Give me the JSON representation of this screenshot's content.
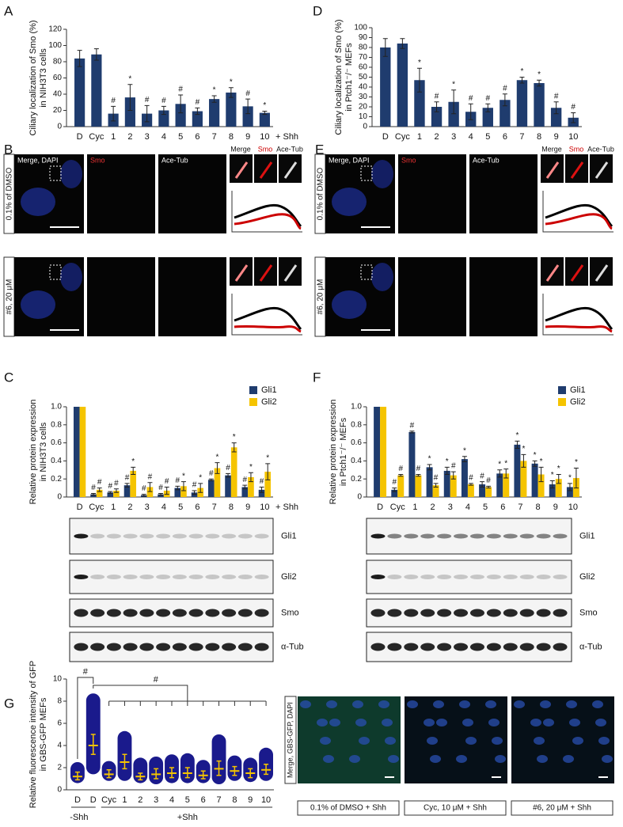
{
  "chart_data": [
    {
      "type": "bar",
      "panel": "A",
      "ylabel": [
        "Ciliary localization of Smo (%)",
        "in NIH3T3 cells"
      ],
      "color": "#1f3c6e",
      "categories": [
        "D",
        "Cyc",
        "1",
        "2",
        "3",
        "4",
        "5",
        "6",
        "7",
        "8",
        "9",
        "10"
      ],
      "category_note": "+ Shh",
      "values": [
        84,
        89,
        16,
        36,
        16,
        20,
        28,
        19,
        34,
        42,
        25,
        17
      ],
      "errors": [
        10,
        7,
        9,
        16,
        10,
        5,
        11,
        4,
        4,
        6,
        9,
        2
      ],
      "markers": [
        null,
        null,
        "#",
        "*",
        "#",
        "#",
        "#",
        "#",
        "*",
        "*",
        "#",
        "*"
      ],
      "ylim": [
        0,
        120
      ],
      "yticks": [
        0,
        20,
        40,
        60,
        80,
        100,
        120
      ]
    },
    {
      "type": "bar",
      "panel": "D",
      "ylabel": [
        "Ciliary localization of Smo (%)",
        "in Ptch1⁻/⁻ MEFs"
      ],
      "color": "#1f3c6e",
      "categories": [
        "D",
        "Cyc",
        "1",
        "2",
        "3",
        "4",
        "5",
        "6",
        "7",
        "8",
        "9",
        "10"
      ],
      "values": [
        80,
        84,
        47,
        20,
        25,
        15,
        19,
        27,
        47,
        44,
        19,
        9
      ],
      "errors": [
        9,
        5,
        12,
        5,
        12,
        8,
        4,
        6,
        3,
        3,
        6,
        5
      ],
      "markers": [
        null,
        null,
        "*",
        "#",
        "*",
        "#",
        "#",
        "#",
        "*",
        "*",
        "#",
        "#"
      ],
      "ylim": [
        0,
        100
      ],
      "yticks": [
        0,
        10,
        20,
        30,
        40,
        50,
        60,
        70,
        80,
        90,
        100
      ]
    },
    {
      "type": "bar",
      "panel": "C",
      "ylabel": [
        "Relative protein expression",
        "in NIH3T3 cells"
      ],
      "legend": "top-right",
      "categories": [
        "D",
        "Cyc",
        "1",
        "2",
        "3",
        "4",
        "5",
        "6",
        "7",
        "8",
        "9",
        "10"
      ],
      "category_note": "+ Shh",
      "series": [
        {
          "name": "Gli1",
          "color": "#1f3c6e",
          "values": [
            1,
            0.03,
            0.05,
            0.13,
            0.02,
            0.03,
            0.1,
            0.05,
            0.19,
            0.24,
            0.11,
            0.08
          ],
          "errors": [
            0,
            0.01,
            0.01,
            0.02,
            0.01,
            0.01,
            0.02,
            0.02,
            0.01,
            0.02,
            0.02,
            0.03
          ],
          "markers": [
            null,
            "#",
            "#",
            "#",
            "#",
            "#",
            "#",
            "#",
            "#",
            "#",
            "#",
            "#"
          ]
        },
        {
          "name": "Gli2",
          "color": "#f5c400",
          "values": [
            1,
            0.08,
            0.07,
            0.29,
            0.11,
            0.07,
            0.12,
            0.1,
            0.32,
            0.55,
            0.22,
            0.28
          ],
          "errors": [
            0,
            0.02,
            0.02,
            0.04,
            0.05,
            0.04,
            0.05,
            0.05,
            0.06,
            0.05,
            0.05,
            0.09
          ],
          "markers": [
            null,
            "#",
            "#",
            "*",
            "#",
            "#",
            "*",
            "*",
            "*",
            "*",
            "*",
            "*"
          ]
        }
      ],
      "ylim": [
        0,
        1
      ],
      "yticks": [
        0,
        0.2,
        0.4,
        0.6,
        0.8,
        {
          "value": 1,
          "label": "1.0"
        }
      ]
    },
    {
      "type": "bar",
      "panel": "F",
      "ylabel": [
        "Relative protein expression",
        "in Ptch1⁻/⁻ MEFs"
      ],
      "legend": "top-right",
      "categories": [
        "D",
        "Cyc",
        "1",
        "2",
        "3",
        "4",
        "5",
        "6",
        "7",
        "8",
        "9",
        "10"
      ],
      "series": [
        {
          "name": "Gli1",
          "color": "#1f3c6e",
          "values": [
            1,
            0.08,
            0.72,
            0.33,
            0.29,
            0.42,
            0.14,
            0.26,
            0.58,
            0.37,
            0.14,
            0.11
          ],
          "errors": [
            0,
            0.02,
            0.01,
            0.03,
            0.04,
            0.03,
            0.03,
            0.04,
            0.04,
            0.03,
            0.04,
            0.04
          ],
          "markers": [
            null,
            "#",
            "#",
            "*",
            "*",
            "*",
            "#",
            "*",
            "*",
            "*",
            "*",
            "*"
          ]
        },
        {
          "name": "Gli2",
          "color": "#f5c400",
          "values": [
            1,
            0.24,
            0.24,
            0.13,
            0.24,
            0.14,
            0.11,
            0.26,
            0.4,
            0.25,
            0.2,
            0.21
          ],
          "errors": [
            0,
            0.01,
            0.01,
            0.02,
            0.04,
            0.01,
            0.01,
            0.05,
            0.07,
            0.08,
            0.05,
            0.11
          ],
          "markers": [
            null,
            "#",
            "#",
            "#",
            "#",
            "#",
            "#",
            "*",
            "*",
            "*",
            "*",
            "*"
          ]
        }
      ],
      "ylim": [
        0,
        1
      ],
      "yticks": [
        0,
        0.2,
        0.4,
        0.6,
        0.8,
        {
          "value": 1,
          "label": "1.0"
        }
      ]
    },
    {
      "type": "dot",
      "panel": "G",
      "ylabel": [
        "Relative fluorescence intensity of GFP",
        "in GBS-GFP MEFs"
      ],
      "color": "#1a1a8c",
      "median_color": "#f5c400",
      "categories": [
        "D",
        "D",
        "Cyc",
        "1",
        "2",
        "3",
        "4",
        "5",
        "6",
        "7",
        "8",
        "9",
        "10"
      ],
      "groups": [
        "-Shh",
        "+Shh"
      ],
      "annotations": [
        "#",
        "#"
      ],
      "values": [
        1.2,
        4.0,
        1.4,
        2.5,
        1.2,
        1.4,
        1.5,
        1.5,
        1.3,
        1.9,
        1.7,
        1.5,
        1.8
      ],
      "lower": [
        0.9,
        3.2,
        1.1,
        1.9,
        0.9,
        1.0,
        1.1,
        1.1,
        1.0,
        1.3,
        1.3,
        1.1,
        1.4
      ],
      "upper": [
        1.6,
        5.0,
        1.8,
        3.2,
        1.5,
        1.9,
        2.0,
        2.0,
        1.7,
        2.6,
        2.1,
        1.9,
        2.3
      ],
      "min": [
        0.6,
        1.4,
        0.8,
        0.8,
        0.6,
        0.5,
        0.6,
        0.6,
        0.6,
        0.5,
        0.8,
        0.7,
        0.8
      ],
      "max": [
        2.5,
        8.7,
        2.6,
        5.3,
        2.9,
        3.0,
        3.2,
        3.3,
        2.7,
        5.0,
        3.1,
        2.9,
        3.8
      ],
      "ylim": [
        0,
        10
      ],
      "yticks": [
        0,
        2,
        4,
        6,
        8,
        10
      ]
    }
  ],
  "images": [
    {
      "panel": "B",
      "columns": [
        "Merge, DAPI",
        "Smo",
        "Ace-Tub"
      ],
      "rows": [
        "0.1% of DMSO",
        "#6, 20 μM"
      ],
      "zoom": [
        "Merge",
        "Smo",
        "Ace-Tub"
      ]
    },
    {
      "panel": "E",
      "columns": [
        "Merge, DAPI",
        "Smo",
        "Ace-Tub"
      ],
      "rows": [
        "0.1% of DMSO",
        "#6, 20 μM"
      ],
      "zoom": [
        "Merge",
        "Smo",
        "Ace-Tub"
      ]
    }
  ],
  "blots": [
    {
      "rows": [
        "Gli1",
        "Gli2",
        "Smo",
        "α-Tub"
      ]
    },
    {
      "rows": [
        "Gli1",
        "Gli2",
        "Smo",
        "α-Tub"
      ]
    }
  ],
  "fluorescence": {
    "label": "Merge, GBS-GFP, DAPI",
    "captions": [
      "0.1% of DMSO + Shh",
      "Cyc, 10 μM + Shh",
      "#6, 20 μM + Shh"
    ]
  }
}
